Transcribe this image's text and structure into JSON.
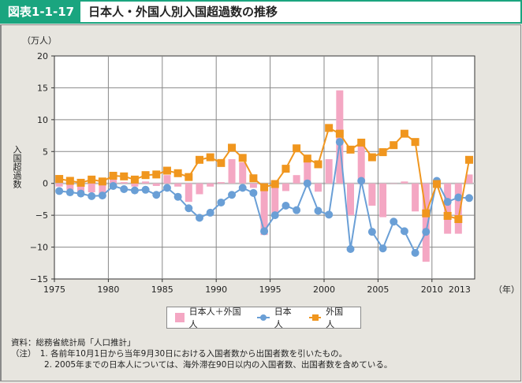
{
  "header": {
    "figure_number": "図表1-1-17",
    "title": "日本人・外国人別入国超過数の推移"
  },
  "chart_data": {
    "type": "bar+line",
    "title": "日本人・外国人別入国超過数の推移",
    "unit_label": "（万人）",
    "ylabel": "入国超過数",
    "xlabel": "（年）",
    "ylim": [
      -15,
      20
    ],
    "yticks": [
      20,
      15,
      10,
      5,
      0,
      -5,
      -10,
      -15
    ],
    "ytick_labels": [
      "20",
      "15",
      "10",
      "5",
      "0",
      "−5",
      "−10",
      "−15"
    ],
    "xlim": [
      1975,
      2014
    ],
    "xticks": [
      1975,
      1980,
      1985,
      1990,
      1995,
      2000,
      2005,
      2010,
      2013
    ],
    "xtick_labels": [
      "1975",
      "1980",
      "1985",
      "1990",
      "1995",
      "2000",
      "2005",
      "2010",
      "2013"
    ],
    "grid": true,
    "legend_position": "bottom-center",
    "x": [
      1975,
      1976,
      1977,
      1978,
      1979,
      1980,
      1981,
      1982,
      1983,
      1984,
      1985,
      1986,
      1987,
      1988,
      1989,
      1990,
      1991,
      1992,
      1993,
      1994,
      1995,
      1996,
      1997,
      1998,
      1999,
      2000,
      2001,
      2002,
      2003,
      2004,
      2005,
      2006,
      2007,
      2008,
      2009,
      2010,
      2011,
      2012,
      2013
    ],
    "series": [
      {
        "name": "日本人＋外国人",
        "type": "bar",
        "color": "#f4a7c3",
        "values": [
          -0.5,
          -1.0,
          -1.5,
          -1.4,
          -1.6,
          0.8,
          0.2,
          -0.5,
          0.3,
          -0.4,
          1.3,
          -0.5,
          -2.9,
          -1.7,
          -0.5,
          0.2,
          3.8,
          3.3,
          -0.7,
          -8.1,
          -5.1,
          -1.2,
          1.3,
          3.9,
          -1.3,
          3.8,
          14.6,
          -5.0,
          6.8,
          -3.5,
          -5.3,
          0.0,
          0.3,
          -4.4,
          -12.3,
          0.3,
          -7.9,
          -7.9,
          1.4
        ]
      },
      {
        "name": "日本人",
        "type": "line",
        "marker": "circle",
        "color": "#6a9fd6",
        "values": [
          -1.2,
          -1.4,
          -1.6,
          -2.0,
          -1.9,
          -0.4,
          -0.9,
          -1.1,
          -1.0,
          -1.8,
          -0.7,
          -2.1,
          -3.9,
          -5.4,
          -4.6,
          -3.0,
          -1.8,
          -0.7,
          -1.5,
          -7.5,
          -5.0,
          -3.5,
          -4.2,
          0.0,
          -4.3,
          -4.9,
          6.5,
          -10.3,
          0.4,
          -7.6,
          -10.2,
          -6.0,
          -7.5,
          -10.9,
          -7.6,
          0.4,
          -2.9,
          -2.2,
          -2.3
        ]
      },
      {
        "name": "外国人",
        "type": "line",
        "marker": "square",
        "color": "#f0961e",
        "values": [
          0.7,
          0.4,
          0.1,
          0.6,
          0.3,
          1.2,
          1.1,
          0.6,
          1.3,
          1.4,
          2.0,
          1.6,
          1.0,
          3.7,
          4.1,
          3.2,
          5.6,
          4.0,
          0.8,
          -0.6,
          -0.1,
          2.3,
          5.5,
          3.9,
          3.0,
          8.7,
          7.8,
          5.3,
          6.4,
          4.1,
          4.9,
          6.0,
          7.8,
          6.5,
          -4.7,
          -0.1,
          -5.1,
          -5.6,
          3.7
        ]
      }
    ]
  },
  "legend": {
    "items": [
      {
        "label": "日本人＋外国人",
        "marker": "bar",
        "color": "#f4a7c3"
      },
      {
        "label": "日本人",
        "marker": "circle-line",
        "color": "#6a9fd6"
      },
      {
        "label": "外国人",
        "marker": "square-line",
        "color": "#f0961e"
      }
    ]
  },
  "notes": {
    "source": "資料：総務省統計局「人口推計」",
    "note1": "（注）　1. 各前年10月1日から当年9月30日における入国者数から出国者数を引いたもの。",
    "note2": "　　　　2. 2005年までの日本人については、海外滞在90日以内の入国者数、出国者数を含めている。"
  }
}
